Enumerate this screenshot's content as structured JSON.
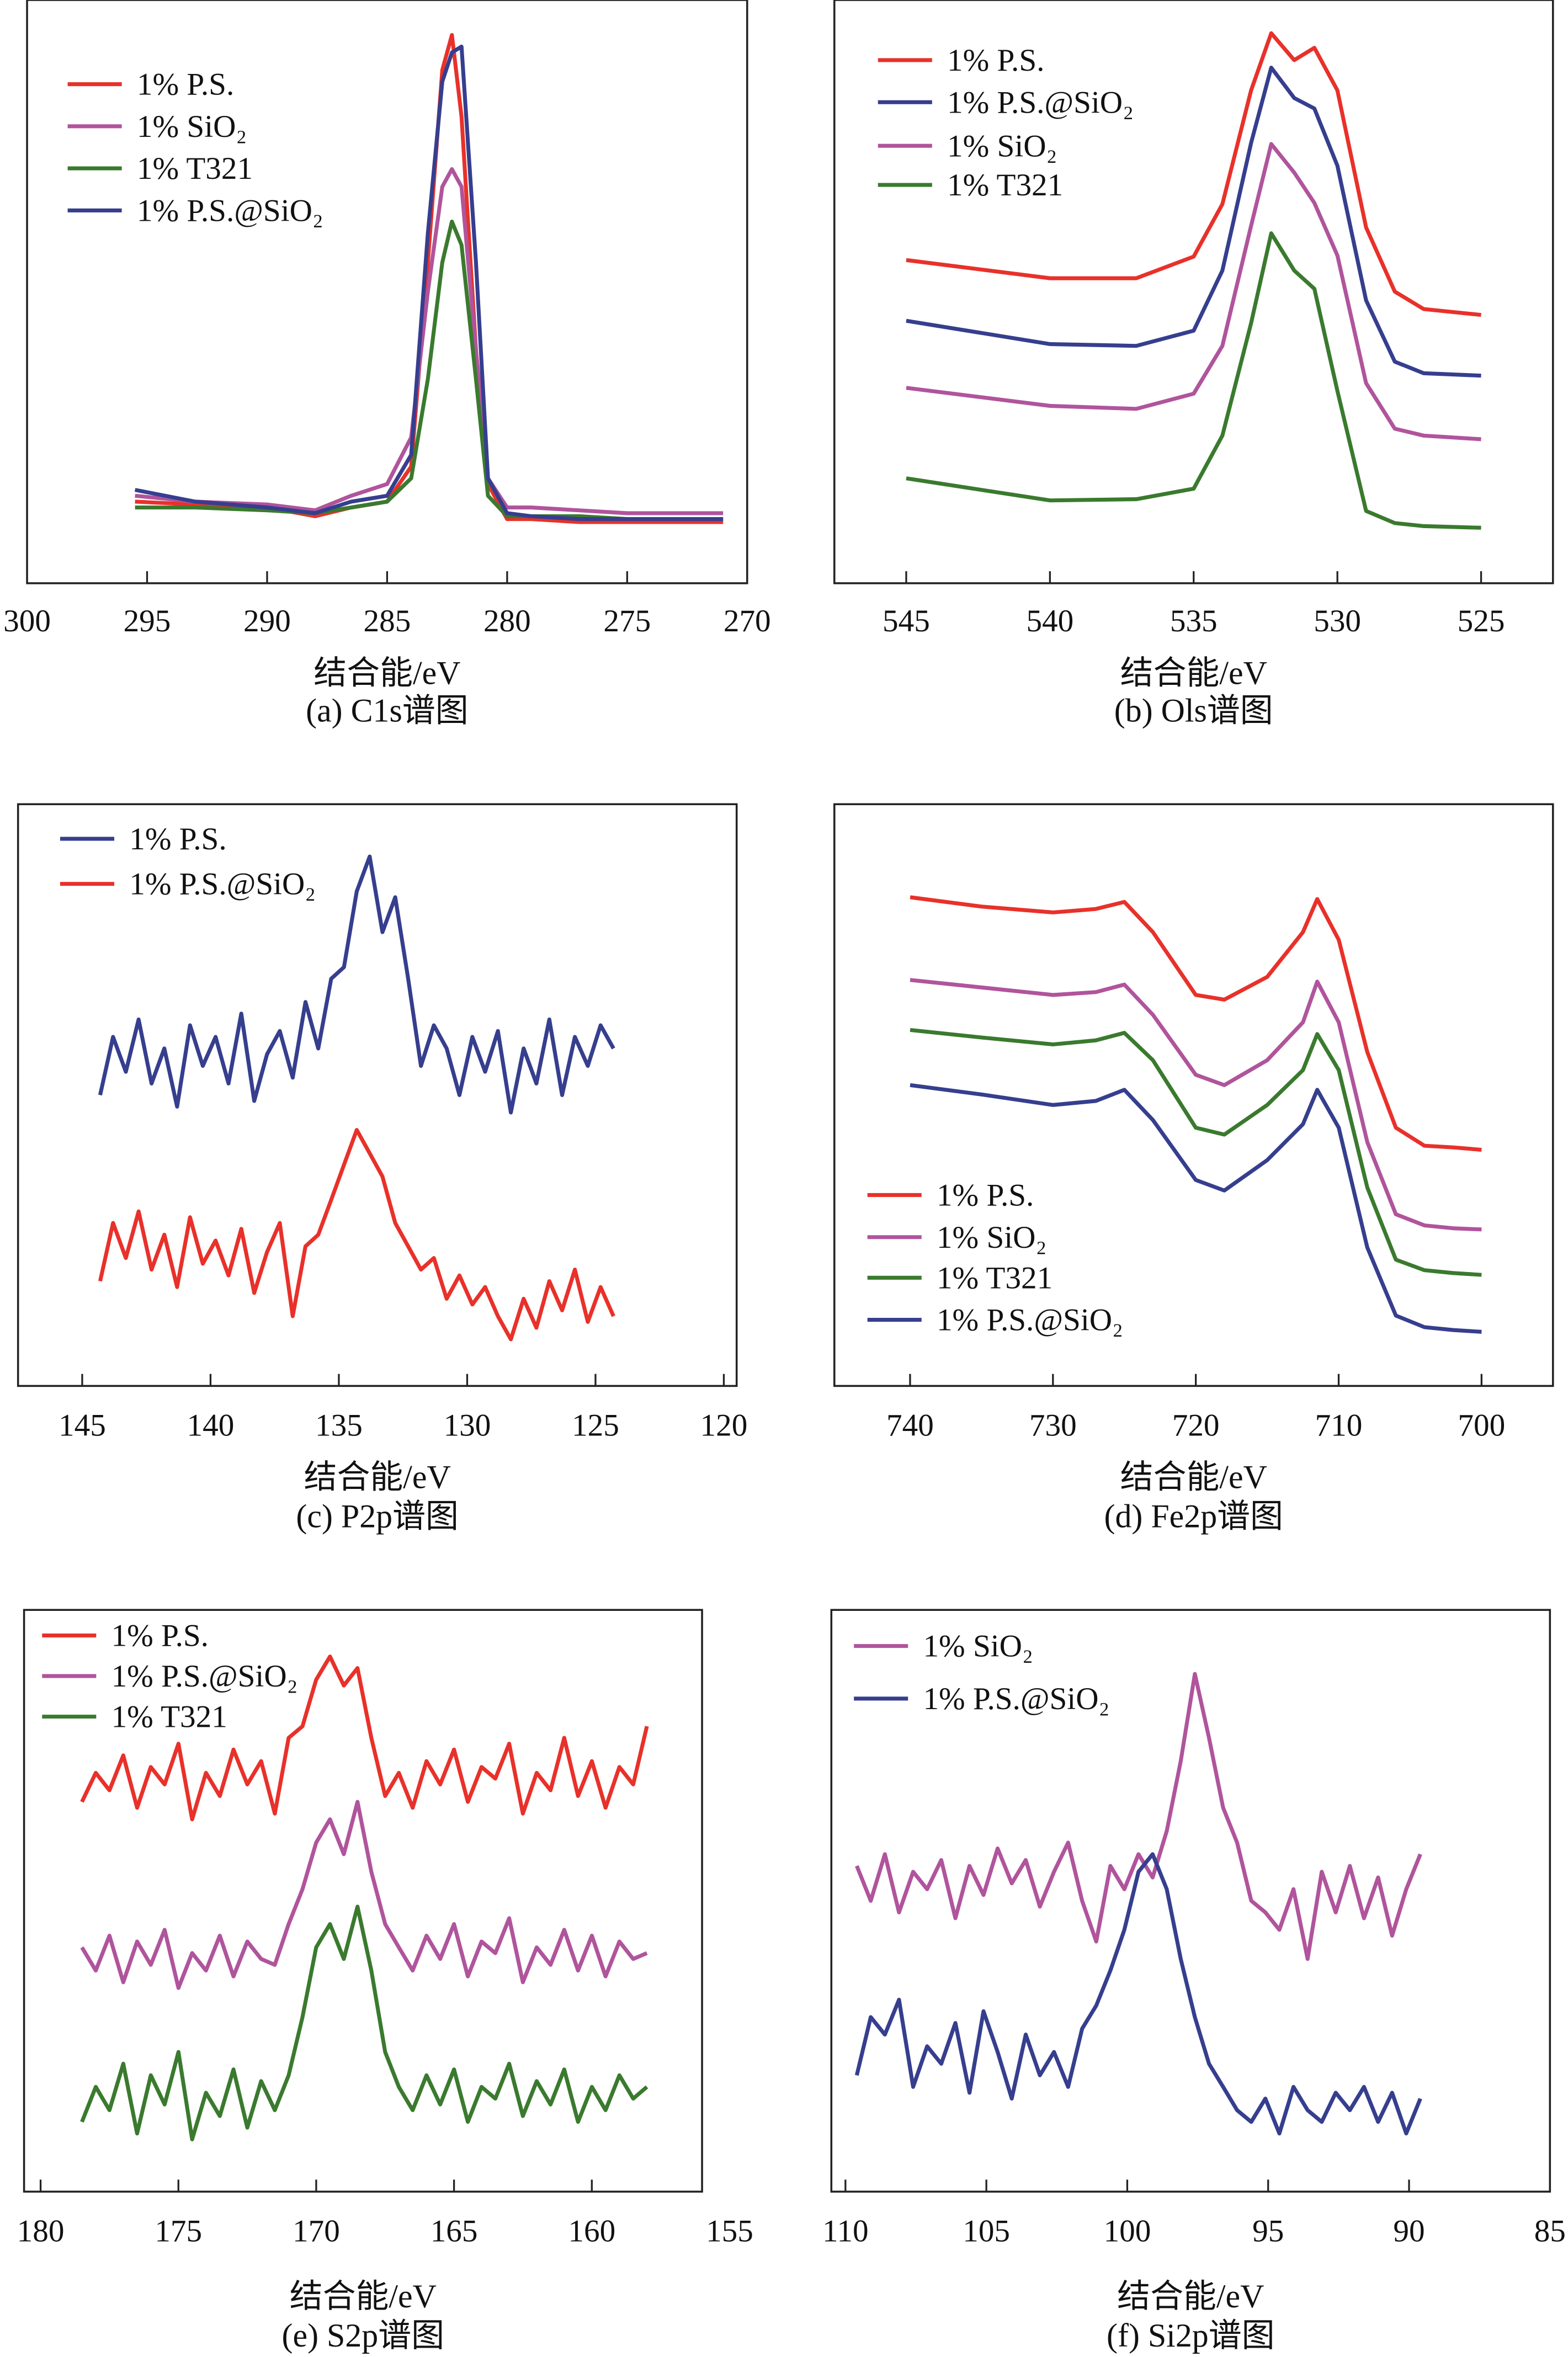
{
  "colors": {
    "red": "#e8312a",
    "purple": "#b0549c",
    "green": "#3a7a2e",
    "blue": "#363e8e"
  },
  "chart_data": [
    {
      "id": "a",
      "type": "line",
      "title": "(a) C1s谱图",
      "xlabel": "结合能/eV",
      "ylabel": "",
      "xlim": [
        300,
        270
      ],
      "ylim": [
        0,
        100
      ],
      "xticks": [
        300,
        295,
        290,
        285,
        280,
        275,
        270
      ],
      "grid": false,
      "legend": "top-left",
      "x": [
        295.5,
        293,
        290,
        288,
        286.5,
        285,
        284,
        283.3,
        282.7,
        282.3,
        281.9,
        281.3,
        280.8,
        280,
        279,
        277,
        275,
        271
      ],
      "series": [
        {
          "name": "1% P.S.",
          "color": "red",
          "values": [
            14,
            13.5,
            13,
            11.5,
            13,
            14,
            20,
            55,
            88,
            94,
            80,
            40,
            17,
            11,
            11,
            10.5,
            10.5,
            10.5
          ]
        },
        {
          "name": "1% SiO₂",
          "color": "purple",
          "values": [
            15,
            14,
            13.5,
            12.5,
            15,
            17,
            25,
            50,
            68,
            71,
            68,
            40,
            18,
            13,
            13,
            12.5,
            12,
            12
          ]
        },
        {
          "name": "1% T321",
          "color": "green",
          "values": [
            13,
            13,
            12.5,
            12,
            13,
            14,
            18,
            35,
            55,
            62,
            58,
            35,
            15,
            11.5,
            11.5,
            11.5,
            11,
            11
          ]
        },
        {
          "name": "1% P.S.@SiO₂",
          "color": "blue",
          "values": [
            16,
            14,
            13,
            12,
            14,
            15,
            22,
            60,
            86,
            91,
            92,
            55,
            18,
            12,
            11.5,
            11,
            11,
            11
          ]
        }
      ]
    },
    {
      "id": "b",
      "type": "line",
      "title": "(b) Ols谱图",
      "xlabel": "结合能/eV",
      "ylabel": "",
      "xlim": [
        547.5,
        522.5
      ],
      "ylim": [
        0,
        100
      ],
      "xticks": [
        545,
        540,
        535,
        530,
        525
      ],
      "grid": false,
      "legend": "top-left",
      "x": [
        545,
        540,
        537,
        535,
        534,
        533,
        532.3,
        531.5,
        530.8,
        530,
        529,
        528,
        527,
        525
      ],
      "series": [
        {
          "name": "1% P.S.",
          "color": "red",
          "values": [
            55.4,
            52.3,
            52.3,
            56,
            65,
            84.5,
            94.3,
            89.7,
            91.8,
            84.5,
            61,
            50,
            47,
            46
          ]
        },
        {
          "name": "1% P.S.@SiO₂",
          "color": "blue",
          "values": [
            45,
            41,
            40.7,
            43.3,
            53.6,
            75.5,
            88.4,
            83.2,
            81.4,
            71.6,
            48.5,
            38,
            36,
            35.6
          ]
        },
        {
          "name": "1% SiO₂",
          "color": "purple",
          "values": [
            33.5,
            30.4,
            29.9,
            32.5,
            40.7,
            61.3,
            75.3,
            70.4,
            65.2,
            56.2,
            34.3,
            26.5,
            25.3,
            24.7
          ]
        },
        {
          "name": "1% T321",
          "color": "green",
          "values": [
            18,
            14.2,
            14.4,
            16.2,
            25.3,
            44.6,
            60,
            53.6,
            50.5,
            33,
            12.4,
            10.3,
            9.8,
            9.5
          ]
        }
      ]
    },
    {
      "id": "c",
      "type": "line",
      "title": "(c) P2p谱图",
      "xlabel": "结合能/eV",
      "ylabel": "",
      "xlim": [
        147.5,
        119.5
      ],
      "ylim": [
        0,
        100
      ],
      "xticks": [
        145,
        140,
        135,
        130,
        125,
        120
      ],
      "grid": false,
      "legend": "top-left",
      "x_start": 144.3,
      "x_step": -0.5,
      "series": [
        {
          "name": "1% P.S.",
          "color": "blue",
          "values": [
            50,
            60,
            54,
            63,
            52,
            58,
            48,
            62,
            55,
            60,
            52,
            64,
            49,
            57,
            61,
            53,
            66,
            58,
            70,
            72,
            85,
            91,
            78,
            84,
            70,
            55,
            62,
            58,
            50,
            60,
            54,
            61,
            47,
            58,
            52,
            63,
            50,
            60,
            55,
            62,
            58
          ]
        },
        {
          "name": "1% P.S.@SiO₂",
          "color": "red",
          "values": [
            18,
            28,
            22,
            30,
            20,
            26,
            17,
            29,
            21,
            25,
            19,
            27,
            16,
            23,
            28,
            12,
            24,
            26,
            32,
            38,
            44,
            40,
            36,
            28,
            24,
            20,
            22,
            15,
            19,
            14,
            17,
            12,
            8,
            15,
            10,
            18,
            13,
            20,
            11,
            17,
            12
          ]
        }
      ]
    },
    {
      "id": "d",
      "type": "line",
      "title": "(d) Fe2p谱图",
      "xlabel": "结合能/eV",
      "ylabel": "",
      "xlim": [
        745.3,
        695
      ],
      "ylim": [
        0,
        100
      ],
      "xticks": [
        740,
        730,
        720,
        710,
        700
      ],
      "grid": false,
      "legend": "bottom-left",
      "x": [
        740,
        735,
        730,
        727,
        725,
        723,
        720,
        718,
        715,
        712.5,
        711.5,
        710,
        708,
        706,
        704,
        702,
        700
      ],
      "series": [
        {
          "name": "1% P.S.",
          "color": "red",
          "values": [
            84,
            82.4,
            81.4,
            82,
            83.2,
            78,
            67.2,
            66.4,
            70.3,
            78,
            83.7,
            76.7,
            57.4,
            44.4,
            41.3,
            41,
            40.6
          ]
        },
        {
          "name": "1% SiO₂",
          "color": "purple",
          "values": [
            69.8,
            68.5,
            67.2,
            67.7,
            69,
            63.8,
            53.5,
            51.7,
            56,
            62.5,
            69.5,
            62.5,
            41.9,
            29.5,
            27.6,
            27.1,
            26.9
          ]
        },
        {
          "name": "1% T321",
          "color": "green",
          "values": [
            61.2,
            59.9,
            58.7,
            59.4,
            60.7,
            56,
            44.4,
            43.2,
            48.3,
            54.3,
            60.5,
            54.3,
            34.1,
            21.7,
            19.9,
            19.4,
            19.1
          ]
        },
        {
          "name": "1% P.S.@SiO₂",
          "color": "blue",
          "values": [
            51.7,
            50.1,
            48.3,
            49,
            50.9,
            45.7,
            35.4,
            33.6,
            38.8,
            45,
            50.9,
            44.4,
            23.8,
            12.1,
            10.1,
            9.6,
            9.3
          ]
        }
      ]
    },
    {
      "id": "e",
      "type": "line",
      "title": "(e) S2p谱图",
      "xlabel": "结合能/eV",
      "ylabel": "",
      "xlim": [
        180.6,
        156
      ],
      "ylim": [
        0,
        100
      ],
      "xticks": [
        180,
        175,
        170,
        165,
        160,
        155
      ],
      "grid": false,
      "legend": "top-left",
      "x_start": 178.5,
      "x_step": -0.5,
      "series": [
        {
          "name": "1% P.S.",
          "color": "red",
          "values": [
            67,
            72,
            69,
            75,
            66,
            73,
            70,
            77,
            64,
            72,
            68,
            76,
            70,
            74,
            65,
            78,
            80,
            88,
            92,
            87,
            90,
            78,
            68,
            72,
            66,
            74,
            70,
            76,
            67,
            73,
            71,
            77,
            65,
            72,
            69,
            78,
            68,
            74,
            66,
            73,
            70,
            80
          ]
        },
        {
          "name": "1% P.S.@SiO₂",
          "color": "purple",
          "values": [
            42,
            38,
            44,
            36,
            43,
            39,
            45,
            35,
            41,
            38,
            44,
            37,
            43,
            40,
            39,
            46,
            52,
            60,
            64,
            58,
            67,
            55,
            46,
            42,
            38,
            44,
            40,
            46,
            37,
            43,
            41,
            47,
            36,
            42,
            39,
            45,
            38,
            44,
            37,
            43,
            40,
            41
          ]
        },
        {
          "name": "1% T321",
          "color": "green",
          "values": [
            12,
            18,
            14,
            22,
            10,
            20,
            15,
            24,
            9,
            17,
            13,
            21,
            11,
            19,
            14,
            20,
            30,
            42,
            46,
            40,
            49,
            38,
            24,
            18,
            14,
            20,
            15,
            21,
            12,
            18,
            16,
            22,
            13,
            19,
            15,
            21,
            12,
            18,
            14,
            20,
            16,
            18
          ]
        }
      ]
    },
    {
      "id": "f",
      "type": "line",
      "title": "(f) Si2p谱图",
      "xlabel": "结合能/eV",
      "ylabel": "",
      "xlim": [
        110.5,
        85
      ],
      "ylim": [
        0,
        100
      ],
      "xticks": [
        110,
        105,
        100,
        95,
        90,
        85
      ],
      "grid": false,
      "legend": "top-left",
      "x_start": 109.6,
      "x_step": -0.5,
      "series": [
        {
          "name": "1% SiO₂",
          "color": "purple",
          "values": [
            56,
            50,
            58,
            48,
            55,
            52,
            57,
            47,
            56,
            51,
            59,
            53,
            57,
            49,
            55,
            60,
            50,
            43,
            56,
            52,
            58,
            54,
            62,
            74,
            89,
            78,
            66,
            60,
            50,
            48,
            45,
            52,
            40,
            55,
            48,
            56,
            47,
            54,
            44,
            52,
            58
          ]
        },
        {
          "name": "1% P.S.@SiO₂",
          "color": "blue",
          "values": [
            20,
            30,
            27,
            33,
            18,
            25,
            22,
            29,
            17,
            31,
            24,
            16,
            27,
            20,
            24,
            18,
            28,
            32,
            38,
            45,
            55,
            58,
            52,
            40,
            30,
            22,
            18,
            14,
            12,
            16,
            10,
            18,
            14,
            12,
            17,
            14,
            18,
            12,
            17,
            10,
            16
          ]
        }
      ]
    }
  ]
}
